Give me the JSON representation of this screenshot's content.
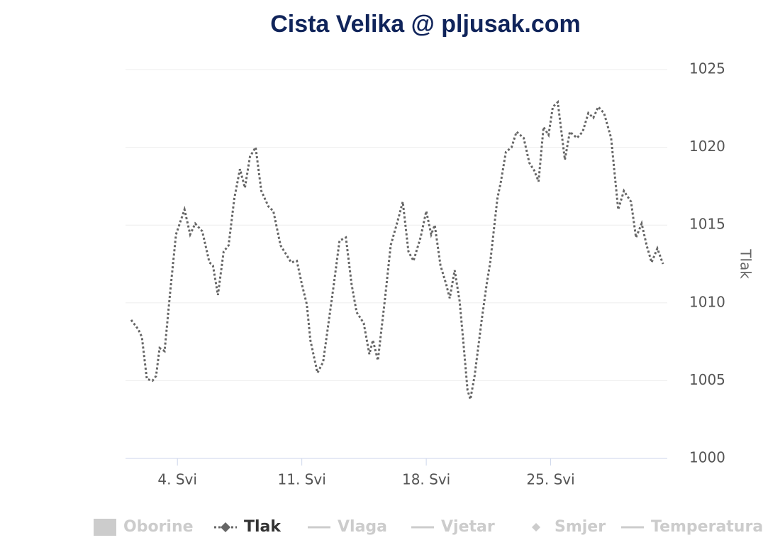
{
  "chart_data": {
    "type": "line",
    "title": "Cista Velika @ pljusak.com",
    "y_axis_label": "Tlak",
    "xlim": [
      1.08,
      31.56
    ],
    "xticks": [
      {
        "value": 4,
        "label": "4. Svi"
      },
      {
        "value": 11,
        "label": "11. Svi"
      },
      {
        "value": 18,
        "label": "18. Svi"
      },
      {
        "value": 25,
        "label": "25. Svi"
      }
    ],
    "ylim": [
      1000,
      1025
    ],
    "yticks": [
      1000,
      1005,
      1010,
      1015,
      1020,
      1025
    ],
    "grid": true,
    "x": [
      1.4,
      1.8,
      2.0,
      2.28,
      2.6,
      2.8,
      3.0,
      3.28,
      3.6,
      3.92,
      4.4,
      4.72,
      5.0,
      5.4,
      5.8,
      6.0,
      6.28,
      6.6,
      6.88,
      7.2,
      7.52,
      7.8,
      8.08,
      8.4,
      8.72,
      9.12,
      9.4,
      9.8,
      10.4,
      10.72,
      11.0,
      11.28,
      11.48,
      11.88,
      12.2,
      12.8,
      13.12,
      13.48,
      13.8,
      14.08,
      14.48,
      14.8,
      15.0,
      15.28,
      15.68,
      16.0,
      16.4,
      16.68,
      17.0,
      17.28,
      17.68,
      18.0,
      18.28,
      18.48,
      18.8,
      19.12,
      19.32,
      19.6,
      19.88,
      20.08,
      20.32,
      20.48,
      20.72,
      21.12,
      21.4,
      21.6,
      22.0,
      22.2,
      22.48,
      22.8,
      23.08,
      23.48,
      23.8,
      24.08,
      24.32,
      24.6,
      24.88,
      25.12,
      25.4,
      25.8,
      26.08,
      26.48,
      26.8,
      27.12,
      27.4,
      27.68,
      28.0,
      28.4,
      28.8,
      29.12,
      29.52,
      29.8,
      30.12,
      30.4,
      30.68,
      31.0,
      31.32
    ],
    "series": [
      {
        "name": "Tlak",
        "color": "#666666",
        "values": [
          1008.9,
          1008.3,
          1007.8,
          1005.1,
          1005,
          1005.3,
          1007.1,
          1006.9,
          1010.8,
          1014.4,
          1016,
          1014.4,
          1015.1,
          1014.6,
          1012.6,
          1012.4,
          1010.5,
          1013.3,
          1013.7,
          1016.7,
          1018.6,
          1017.4,
          1019.4,
          1020,
          1017.2,
          1016.2,
          1015.9,
          1013.7,
          1012.6,
          1012.7,
          1011.2,
          1009.9,
          1007.6,
          1005.5,
          1006.2,
          1011.2,
          1014,
          1014.2,
          1011.2,
          1009.4,
          1008.7,
          1006.7,
          1007.6,
          1006.3,
          1010.3,
          1013.7,
          1015.3,
          1016.5,
          1013.3,
          1012.7,
          1014.2,
          1015.9,
          1014.4,
          1015,
          1012.4,
          1011.2,
          1010.3,
          1012.1,
          1010.1,
          1007.6,
          1004.4,
          1003.8,
          1005.3,
          1008.9,
          1011.2,
          1012.6,
          1016.7,
          1017.8,
          1019.7,
          1020,
          1021,
          1020.6,
          1019,
          1018.5,
          1017.8,
          1021.3,
          1020.8,
          1022.6,
          1022.9,
          1019.2,
          1021,
          1020.6,
          1021,
          1022.2,
          1021.9,
          1022.6,
          1022.2,
          1020.6,
          1016,
          1017.2,
          1016.5,
          1014.2,
          1015.1,
          1013.7,
          1012.6,
          1013.5,
          1012.5
        ]
      }
    ],
    "hidden_series": [
      {
        "name": "Oborine",
        "symbol": "rect"
      },
      {
        "name": "Vlaga",
        "symbol": "line"
      },
      {
        "name": "Vjetar",
        "symbol": "line"
      },
      {
        "name": "Smjer",
        "symbol": "diamond"
      },
      {
        "name": "Temperatura",
        "symbol": "line"
      }
    ]
  }
}
